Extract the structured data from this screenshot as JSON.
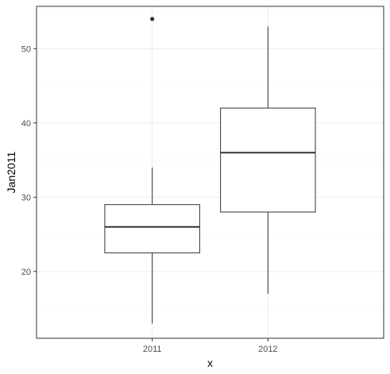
{
  "chart_data": {
    "type": "boxplot",
    "title": "",
    "xlabel": "x",
    "ylabel": "Jan2011",
    "categories": [
      "2011",
      "2012"
    ],
    "boxes": [
      {
        "category": "2011",
        "whisker_low": 13,
        "q1": 22.5,
        "median": 26,
        "q3": 29,
        "whisker_high": 34,
        "outliers": [
          54
        ]
      },
      {
        "category": "2012",
        "whisker_low": 17,
        "q1": 28,
        "median": 36,
        "q3": 42,
        "whisker_high": 53,
        "outliers": []
      }
    ],
    "ylim": [
      11,
      55.7
    ],
    "yticks": [
      20,
      30,
      40,
      50
    ],
    "yminor": [
      15,
      25,
      35,
      45,
      55
    ],
    "grid": true,
    "theme": "bw",
    "colors": {
      "grid_major": "#ebebeb",
      "grid_minor": "#f5f5f5",
      "border": "#333333",
      "box_fill": "#ffffff",
      "box_line": "#333333",
      "text": "#4d4d4d"
    }
  }
}
